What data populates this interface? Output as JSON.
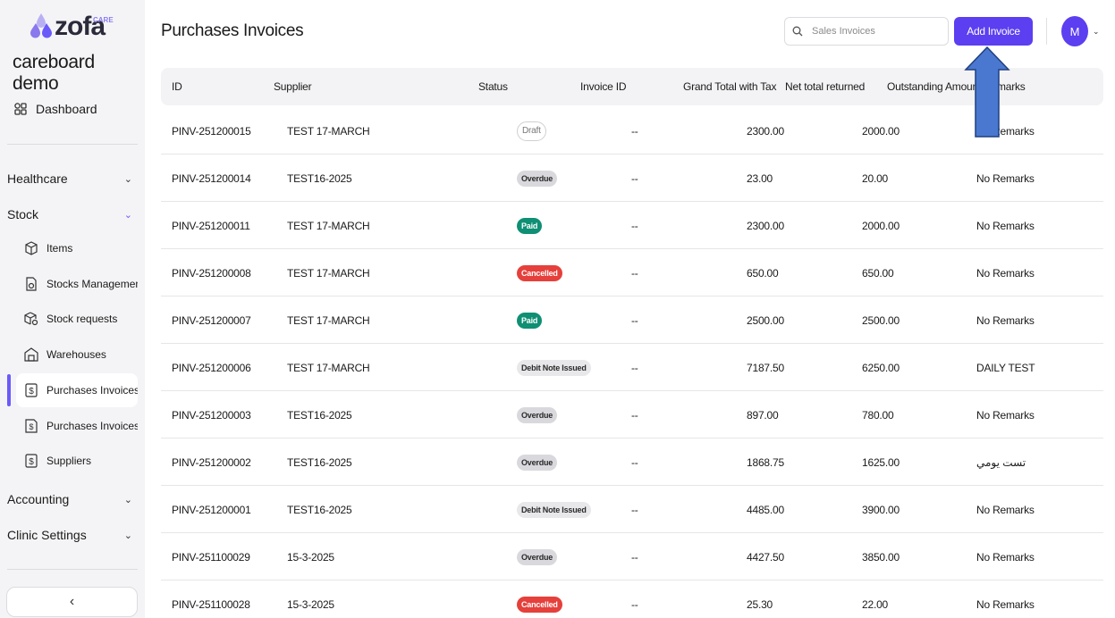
{
  "sidebar": {
    "logo_text": "zofa",
    "logo_care": "CARE",
    "org_name": "careboard demo",
    "dashboard_label": "Dashboard",
    "groups": {
      "healthcare": "Healthcare",
      "stock": "Stock",
      "accounting": "Accounting",
      "clinic_settings": "Clinic Settings"
    },
    "stock_items": [
      {
        "label": "Items",
        "icon": "box-icon"
      },
      {
        "label": "Stocks Management",
        "icon": "stock-document-icon"
      },
      {
        "label": "Stock requests",
        "icon": "box-request-icon"
      },
      {
        "label": "Warehouses",
        "icon": "warehouse-icon"
      },
      {
        "label": "Purchases Invoices",
        "icon": "invoice-dollar-icon"
      },
      {
        "label": "Purchases Invoices...",
        "icon": "invoice-return-icon"
      },
      {
        "label": "Suppliers",
        "icon": "supplier-dollar-icon"
      }
    ],
    "collapse_icon": "chevron-left-icon"
  },
  "header": {
    "title": "Purchases Invoices",
    "search_placeholder": "Sales Invoices",
    "add_button": "Add Invoice",
    "avatar_initial": "M"
  },
  "table": {
    "columns": [
      "ID",
      "Supplier",
      "Status",
      "Invoice ID",
      "Grand Total with Tax",
      "Net total returned",
      "Outstanding Amount",
      "Remarks"
    ],
    "rows": [
      {
        "id": "PINV-251200015",
        "supplier": "TEST 17-MARCH",
        "status": "Draft",
        "invoice_id": "--",
        "grand_total": "2300.00",
        "net_returned": "2000.00",
        "outstanding": "",
        "remarks": "No Remarks"
      },
      {
        "id": "PINV-251200014",
        "supplier": "TEST16-2025",
        "status": "Overdue",
        "invoice_id": "--",
        "grand_total": "23.00",
        "net_returned": "20.00",
        "outstanding": "",
        "remarks": "No Remarks"
      },
      {
        "id": "PINV-251200011",
        "supplier": "TEST 17-MARCH",
        "status": "Paid",
        "invoice_id": "--",
        "grand_total": "2300.00",
        "net_returned": "2000.00",
        "outstanding": "",
        "remarks": "No Remarks"
      },
      {
        "id": "PINV-251200008",
        "supplier": "TEST 17-MARCH",
        "status": "Cancelled",
        "invoice_id": "--",
        "grand_total": "650.00",
        "net_returned": "650.00",
        "outstanding": "",
        "remarks": "No Remarks"
      },
      {
        "id": "PINV-251200007",
        "supplier": "TEST 17-MARCH",
        "status": "Paid",
        "invoice_id": "--",
        "grand_total": "2500.00",
        "net_returned": "2500.00",
        "outstanding": "",
        "remarks": "No Remarks"
      },
      {
        "id": "PINV-251200006",
        "supplier": "TEST 17-MARCH",
        "status": "Debit Note Issued",
        "invoice_id": "--",
        "grand_total": "7187.50",
        "net_returned": "6250.00",
        "outstanding": "",
        "remarks": "DAILY TEST"
      },
      {
        "id": "PINV-251200003",
        "supplier": "TEST16-2025",
        "status": "Overdue",
        "invoice_id": "--",
        "grand_total": "897.00",
        "net_returned": "780.00",
        "outstanding": "",
        "remarks": "No Remarks"
      },
      {
        "id": "PINV-251200002",
        "supplier": "TEST16-2025",
        "status": "Overdue",
        "invoice_id": "--",
        "grand_total": "1868.75",
        "net_returned": "1625.00",
        "outstanding": "",
        "remarks": "تست يومي"
      },
      {
        "id": "PINV-251200001",
        "supplier": "TEST16-2025",
        "status": "Debit Note Issued",
        "invoice_id": "--",
        "grand_total": "4485.00",
        "net_returned": "3900.00",
        "outstanding": "",
        "remarks": "No Remarks"
      },
      {
        "id": "PINV-251100029",
        "supplier": "15-3-2025",
        "status": "Overdue",
        "invoice_id": "--",
        "grand_total": "4427.50",
        "net_returned": "3850.00",
        "outstanding": "",
        "remarks": "No Remarks"
      },
      {
        "id": "PINV-251100028",
        "supplier": "15-3-2025",
        "status": "Cancelled",
        "invoice_id": "--",
        "grand_total": "25.30",
        "net_returned": "22.00",
        "outstanding": "",
        "remarks": "No Remarks"
      }
    ]
  },
  "colors": {
    "accent": "#5b3ff0",
    "paid": "#0f8f74",
    "cancelled": "#e5403b",
    "overdue": "#d9d9dd",
    "annotation_arrow": "#4a78d0"
  }
}
